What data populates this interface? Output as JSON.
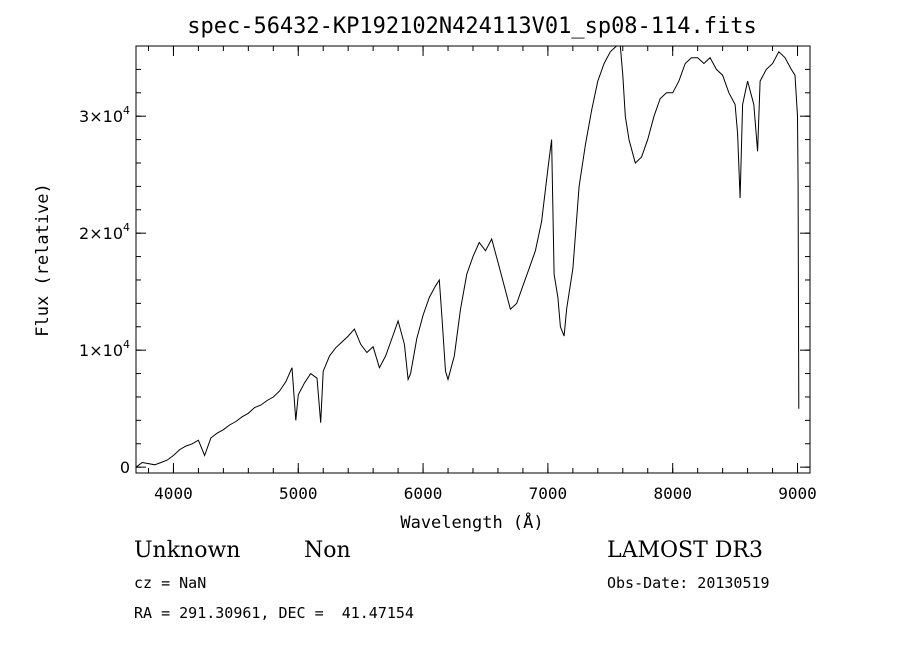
{
  "chart_data": {
    "type": "line",
    "title": "spec-56432-KP192102N424113V01_sp08-114.fits",
    "xlabel": "Wavelength (Å)",
    "ylabel": "Flux (relative)",
    "xlim": [
      3700,
      9100
    ],
    "ylim": [
      -500,
      36000
    ],
    "x_ticks": [
      4000,
      5000,
      6000,
      7000,
      8000,
      9000
    ],
    "x_tick_labels": [
      "4000",
      "5000",
      "6000",
      "7000",
      "8000",
      "9000"
    ],
    "y_ticks": [
      0,
      10000,
      20000,
      30000
    ],
    "y_tick_labels": [
      {
        "mantissa": "0",
        "exponent": ""
      },
      {
        "mantissa": "1×10",
        "exponent": "4"
      },
      {
        "mantissa": "2×10",
        "exponent": "4"
      },
      {
        "mantissa": "3×10",
        "exponent": "4"
      }
    ],
    "series": [
      {
        "x": [
          3700,
          3750,
          3800,
          3850,
          3900,
          3950,
          4000,
          4050,
          4100,
          4150,
          4200,
          4250,
          4300,
          4350,
          4400,
          4450,
          4500,
          4550,
          4600,
          4650,
          4700,
          4750,
          4800,
          4850,
          4900,
          4950,
          4980,
          5000,
          5050,
          5100,
          5150,
          5180,
          5200,
          5250,
          5300,
          5350,
          5400,
          5450,
          5500,
          5550,
          5600,
          5650,
          5700,
          5750,
          5800,
          5850,
          5880,
          5900,
          5950,
          6000,
          6050,
          6100,
          6130,
          6150,
          6180,
          6200,
          6250,
          6300,
          6350,
          6400,
          6450,
          6500,
          6550,
          6600,
          6650,
          6700,
          6750,
          6800,
          6850,
          6900,
          6950,
          7000,
          7030,
          7050,
          7080,
          7100,
          7130,
          7150,
          7200,
          7250,
          7300,
          7350,
          7400,
          7450,
          7500,
          7550,
          7580,
          7600,
          7620,
          7650,
          7700,
          7750,
          7800,
          7850,
          7900,
          7950,
          8000,
          8050,
          8100,
          8150,
          8200,
          8250,
          8300,
          8350,
          8400,
          8450,
          8500,
          8520,
          8540,
          8560,
          8600,
          8650,
          8680,
          8700,
          8750,
          8800,
          8850,
          8900,
          8950,
          8980,
          9000,
          9005,
          9010
        ],
        "y": [
          0,
          400,
          300,
          200,
          400,
          600,
          1000,
          1500,
          1800,
          2000,
          2300,
          1000,
          2500,
          2900,
          3200,
          3600,
          3900,
          4300,
          4600,
          5100,
          5300,
          5700,
          6000,
          6500,
          7300,
          8500,
          4000,
          6200,
          7200,
          8000,
          7600,
          3800,
          8200,
          9500,
          10200,
          10700,
          11200,
          11800,
          10500,
          9800,
          10300,
          8500,
          9500,
          11000,
          12500,
          10500,
          7500,
          8000,
          11000,
          13000,
          14500,
          15500,
          16000,
          13000,
          8200,
          7500,
          9500,
          13500,
          16500,
          18000,
          19200,
          18500,
          19500,
          17500,
          15500,
          13500,
          14000,
          15500,
          17000,
          18500,
          21000,
          25500,
          28000,
          16500,
          14500,
          12000,
          11200,
          13500,
          17000,
          24000,
          27500,
          30500,
          33000,
          34500,
          35500,
          36000,
          36000,
          33500,
          30000,
          28000,
          26000,
          26500,
          28000,
          30000,
          31500,
          32000,
          32000,
          33000,
          34500,
          35000,
          35000,
          34500,
          35000,
          34000,
          33500,
          32000,
          31000,
          28500,
          23000,
          31000,
          33000,
          31000,
          27000,
          33000,
          34000,
          34500,
          35500,
          35000,
          34000,
          33500,
          30000,
          24000,
          5000
        ]
      }
    ]
  },
  "info": {
    "object_class": "Unknown",
    "subclass": "Non",
    "cz": "cz = NaN",
    "coords": "RA = 291.30961, DEC =  41.47154",
    "survey": "LAMOST DR3",
    "obs_date": "Obs-Date: 20130519"
  }
}
